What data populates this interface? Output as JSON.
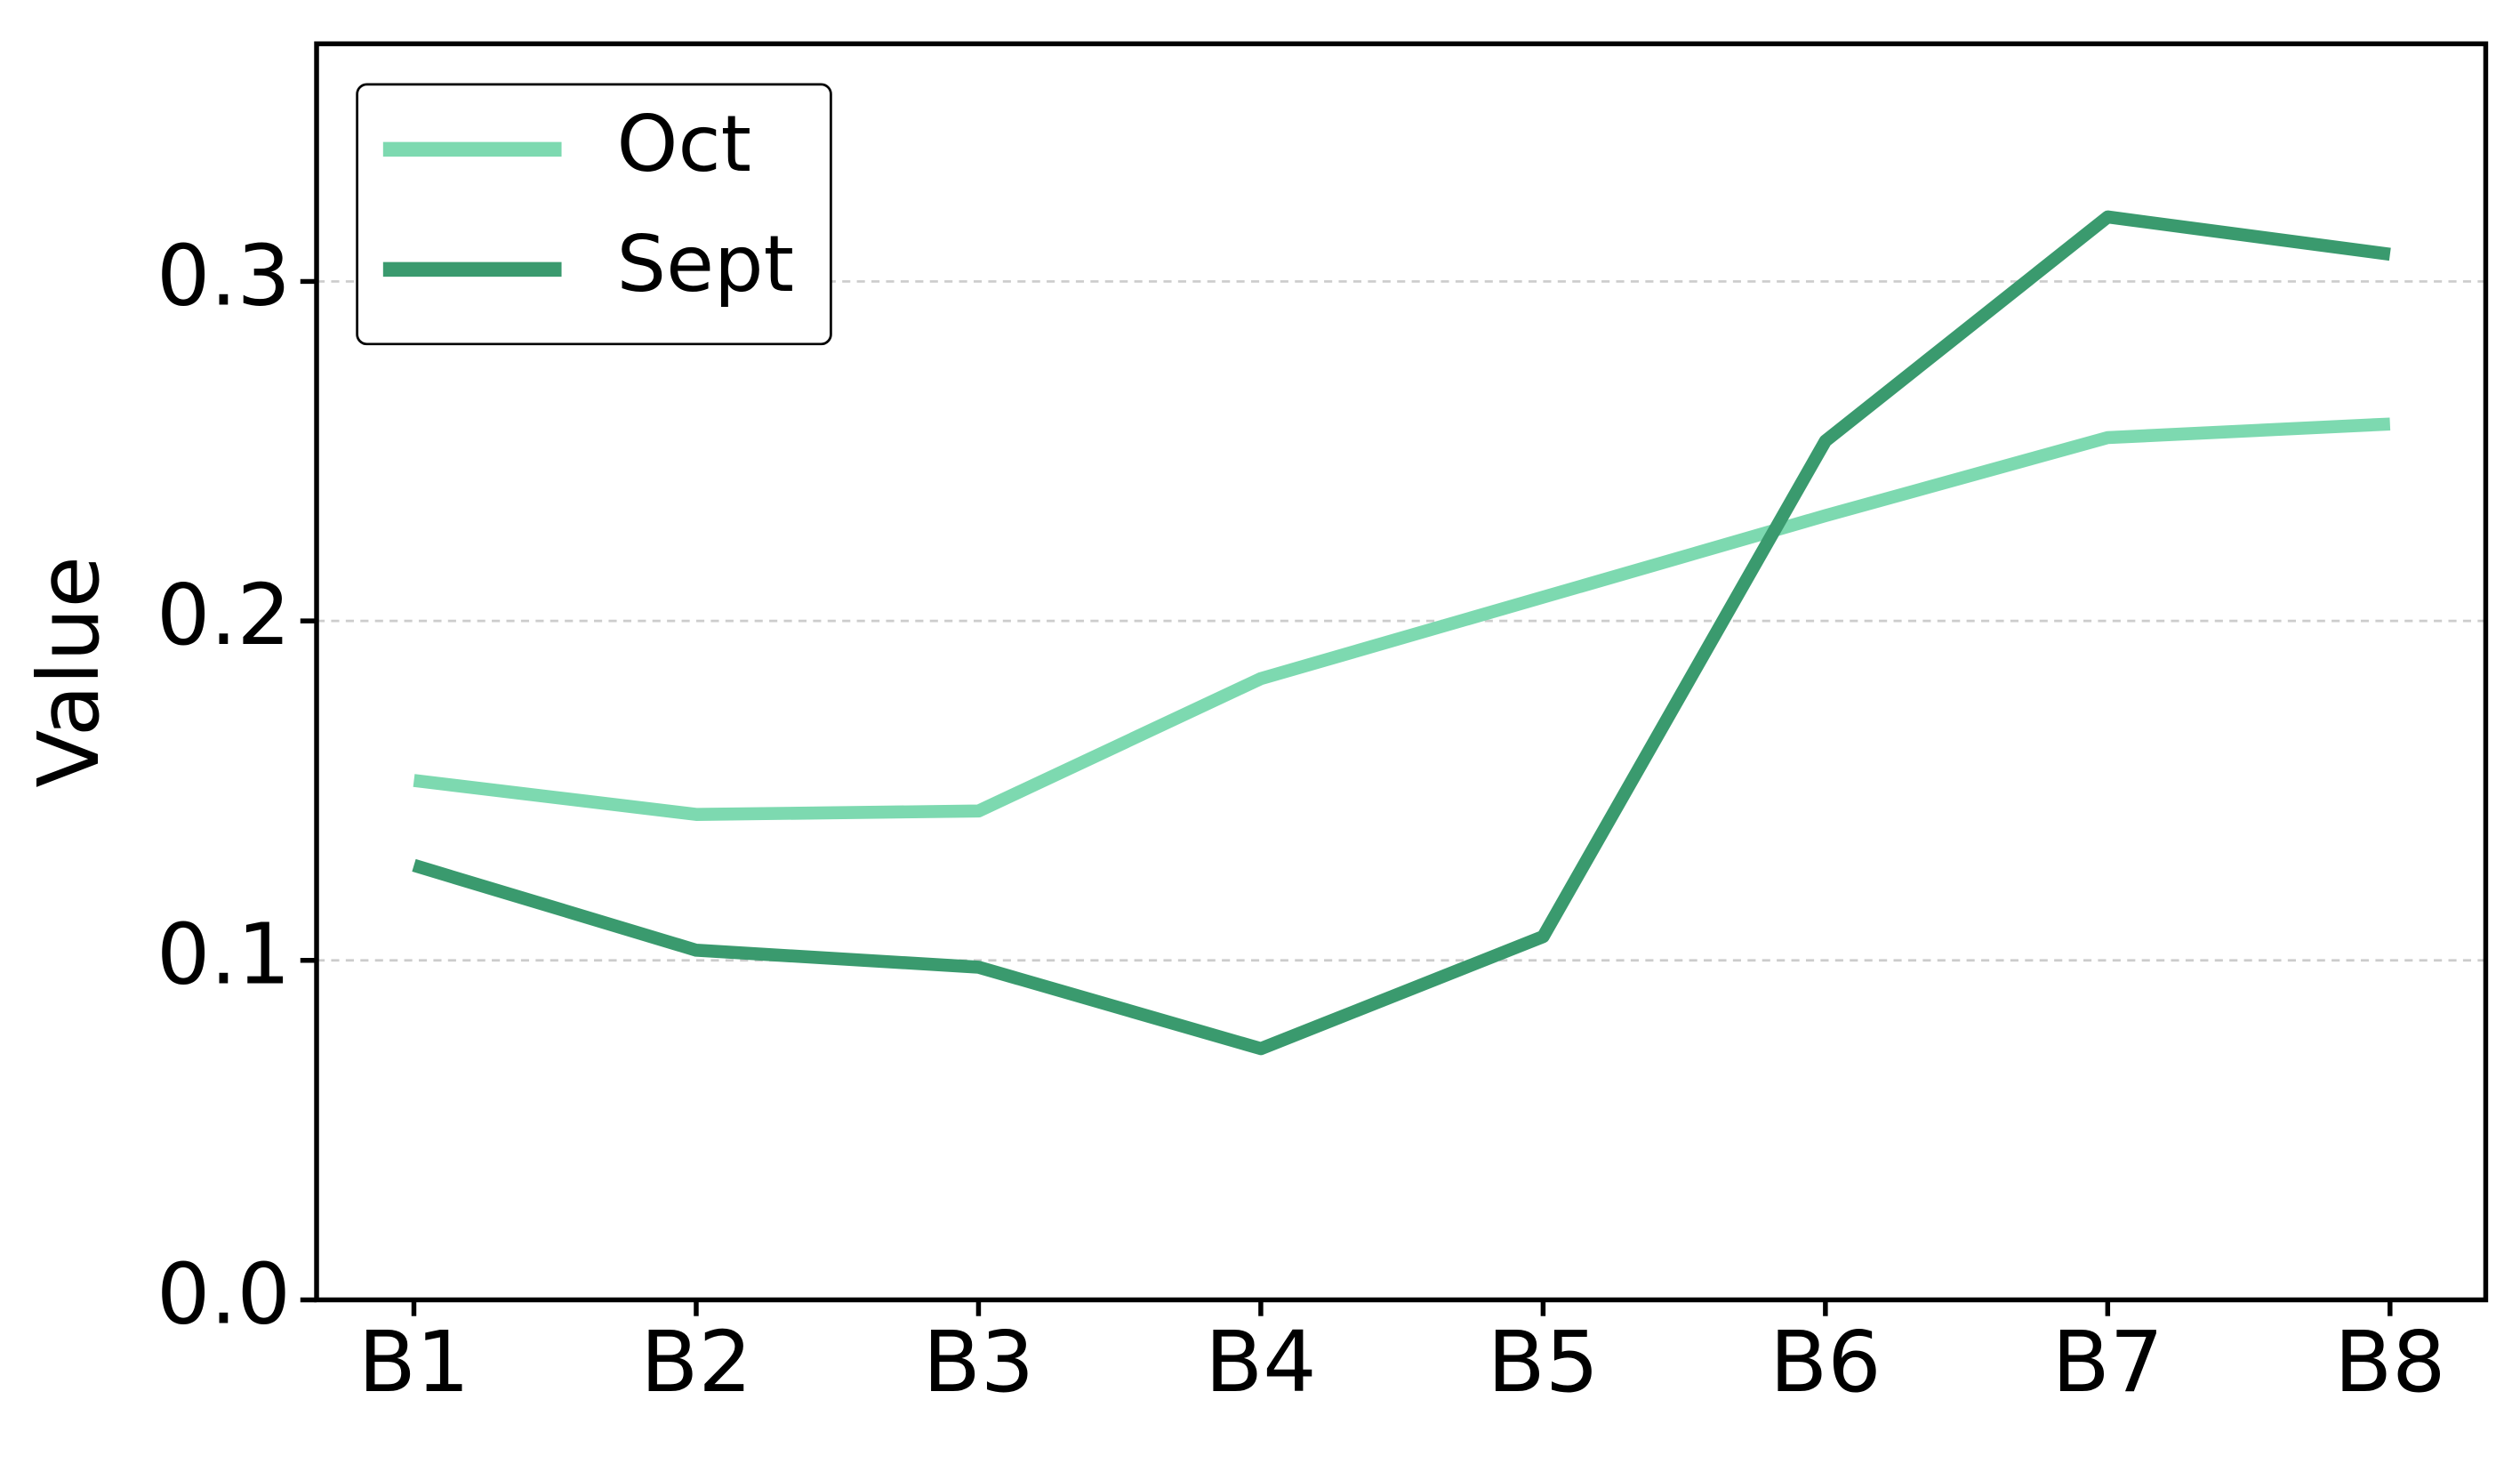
{
  "chart_data": {
    "type": "line",
    "y_label": "Value",
    "categories": [
      "B1",
      "B2",
      "B3",
      "B4",
      "B5",
      "B6",
      "B7",
      "B8"
    ],
    "series": [
      {
        "name": "Oct",
        "color": "#7dd9b0",
        "values": [
          0.153,
          0.143,
          0.144,
          0.183,
          0.207,
          0.231,
          0.254,
          0.258
        ]
      },
      {
        "name": "Sept",
        "color": "#3a9a6e",
        "values": [
          0.128,
          0.103,
          0.098,
          0.074,
          0.107,
          0.253,
          0.319,
          0.308
        ]
      }
    ],
    "ylim": [
      0,
      0.37
    ],
    "yticks": [
      {
        "value": 0,
        "label": "0.0"
      },
      0.1,
      0.2,
      0.3
    ],
    "grid": true,
    "legend": "upper-left"
  }
}
